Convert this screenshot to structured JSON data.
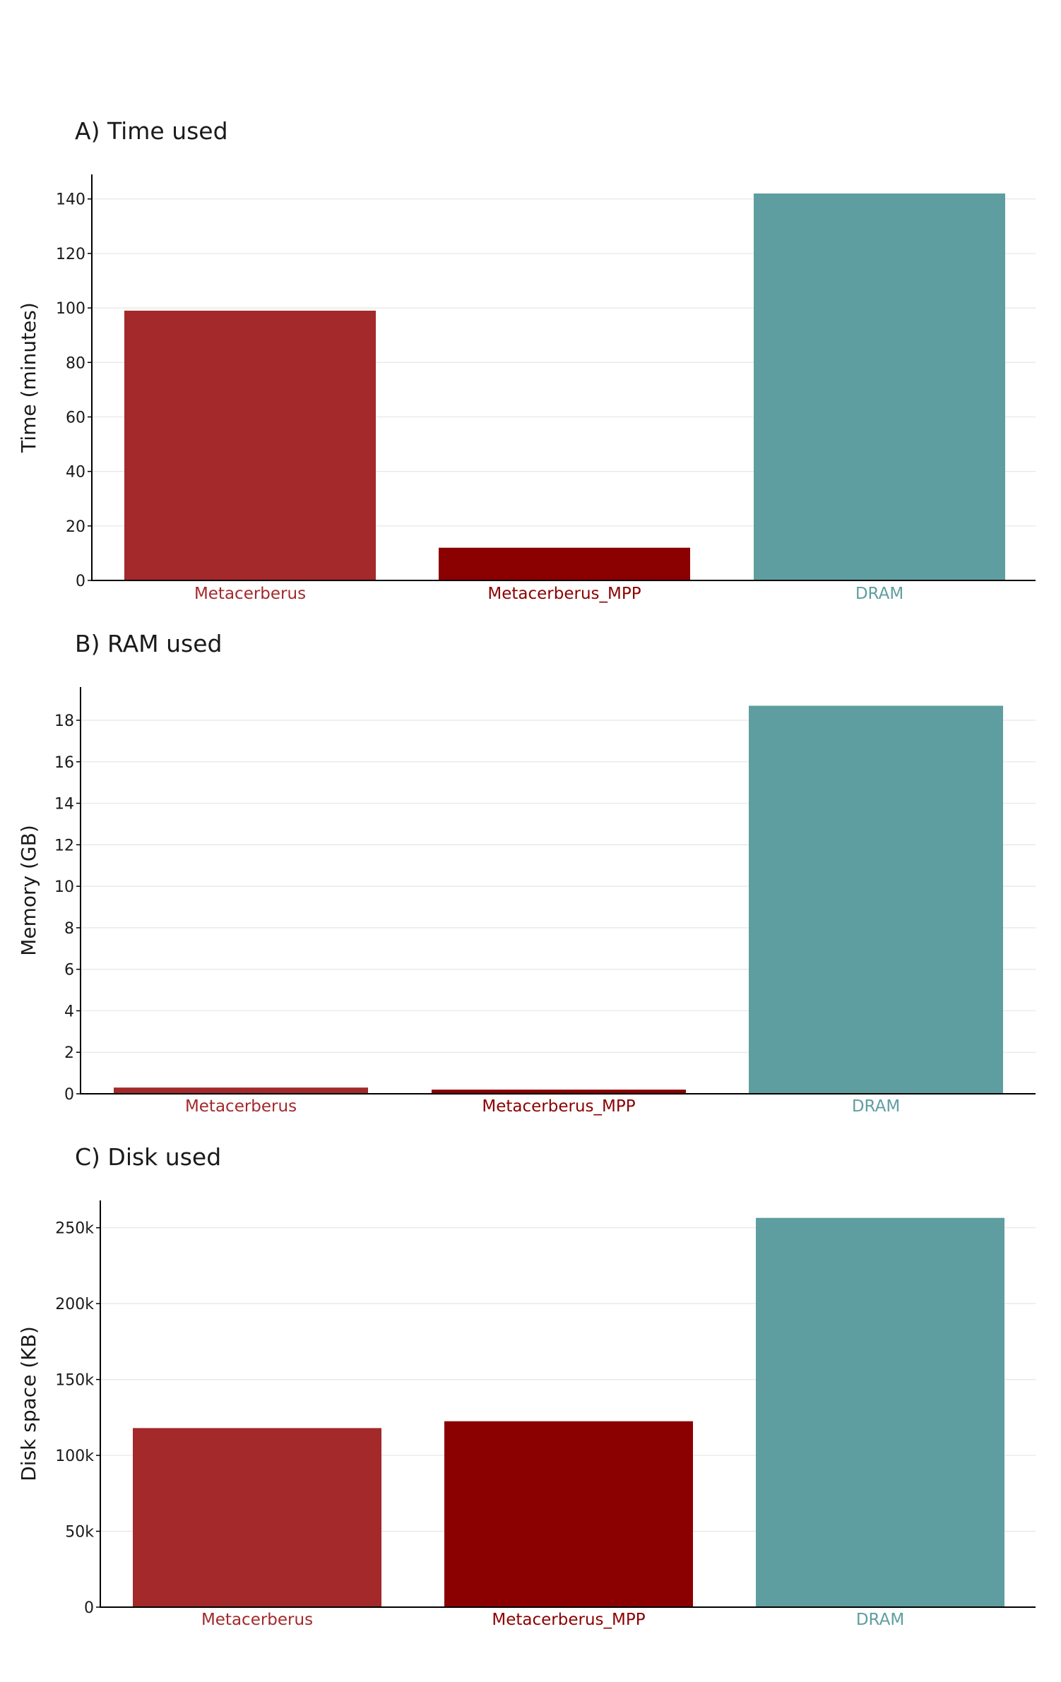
{
  "chart_data": [
    {
      "type": "bar",
      "title": "A) Time used",
      "ylabel": "Time (minutes)",
      "xlabel": "",
      "categories": [
        "Metacerberus",
        "Metacerberus_MPP",
        "DRAM"
      ],
      "values": [
        99,
        12,
        142
      ],
      "colors": [
        "#a3292b",
        "#8b0000",
        "#5f9ea0"
      ],
      "ylim": [
        0,
        149
      ],
      "yticks": [
        0,
        20,
        40,
        60,
        80,
        100,
        120,
        140
      ],
      "ytick_labels": [
        "0",
        "20",
        "40",
        "60",
        "80",
        "100",
        "120",
        "140"
      ],
      "grid": true
    },
    {
      "type": "bar",
      "title": "B) RAM used",
      "ylabel": "Memory (GB)",
      "xlabel": "",
      "categories": [
        "Metacerberus",
        "Metacerberus_MPP",
        "DRAM"
      ],
      "values": [
        0.3,
        0.2,
        18.7
      ],
      "colors": [
        "#a3292b",
        "#8b0000",
        "#5f9ea0"
      ],
      "ylim": [
        0,
        19.6
      ],
      "yticks": [
        0,
        2,
        4,
        6,
        8,
        10,
        12,
        14,
        16,
        18
      ],
      "ytick_labels": [
        "0",
        "2",
        "4",
        "6",
        "8",
        "10",
        "12",
        "14",
        "16",
        "18"
      ],
      "grid": true
    },
    {
      "type": "bar",
      "title": "C) Disk used",
      "ylabel": "Disk space (KB)",
      "xlabel": "",
      "categories": [
        "Metacerberus",
        "Metacerberus_MPP",
        "DRAM"
      ],
      "values": [
        118000,
        122500,
        256500
      ],
      "colors": [
        "#a3292b",
        "#8b0000",
        "#5f9ea0"
      ],
      "ylim": [
        0,
        268000
      ],
      "yticks": [
        0,
        50000,
        100000,
        150000,
        200000,
        250000
      ],
      "ytick_labels": [
        "0",
        "50k",
        "100k",
        "150k",
        "200k",
        "250k"
      ],
      "grid": true
    }
  ]
}
